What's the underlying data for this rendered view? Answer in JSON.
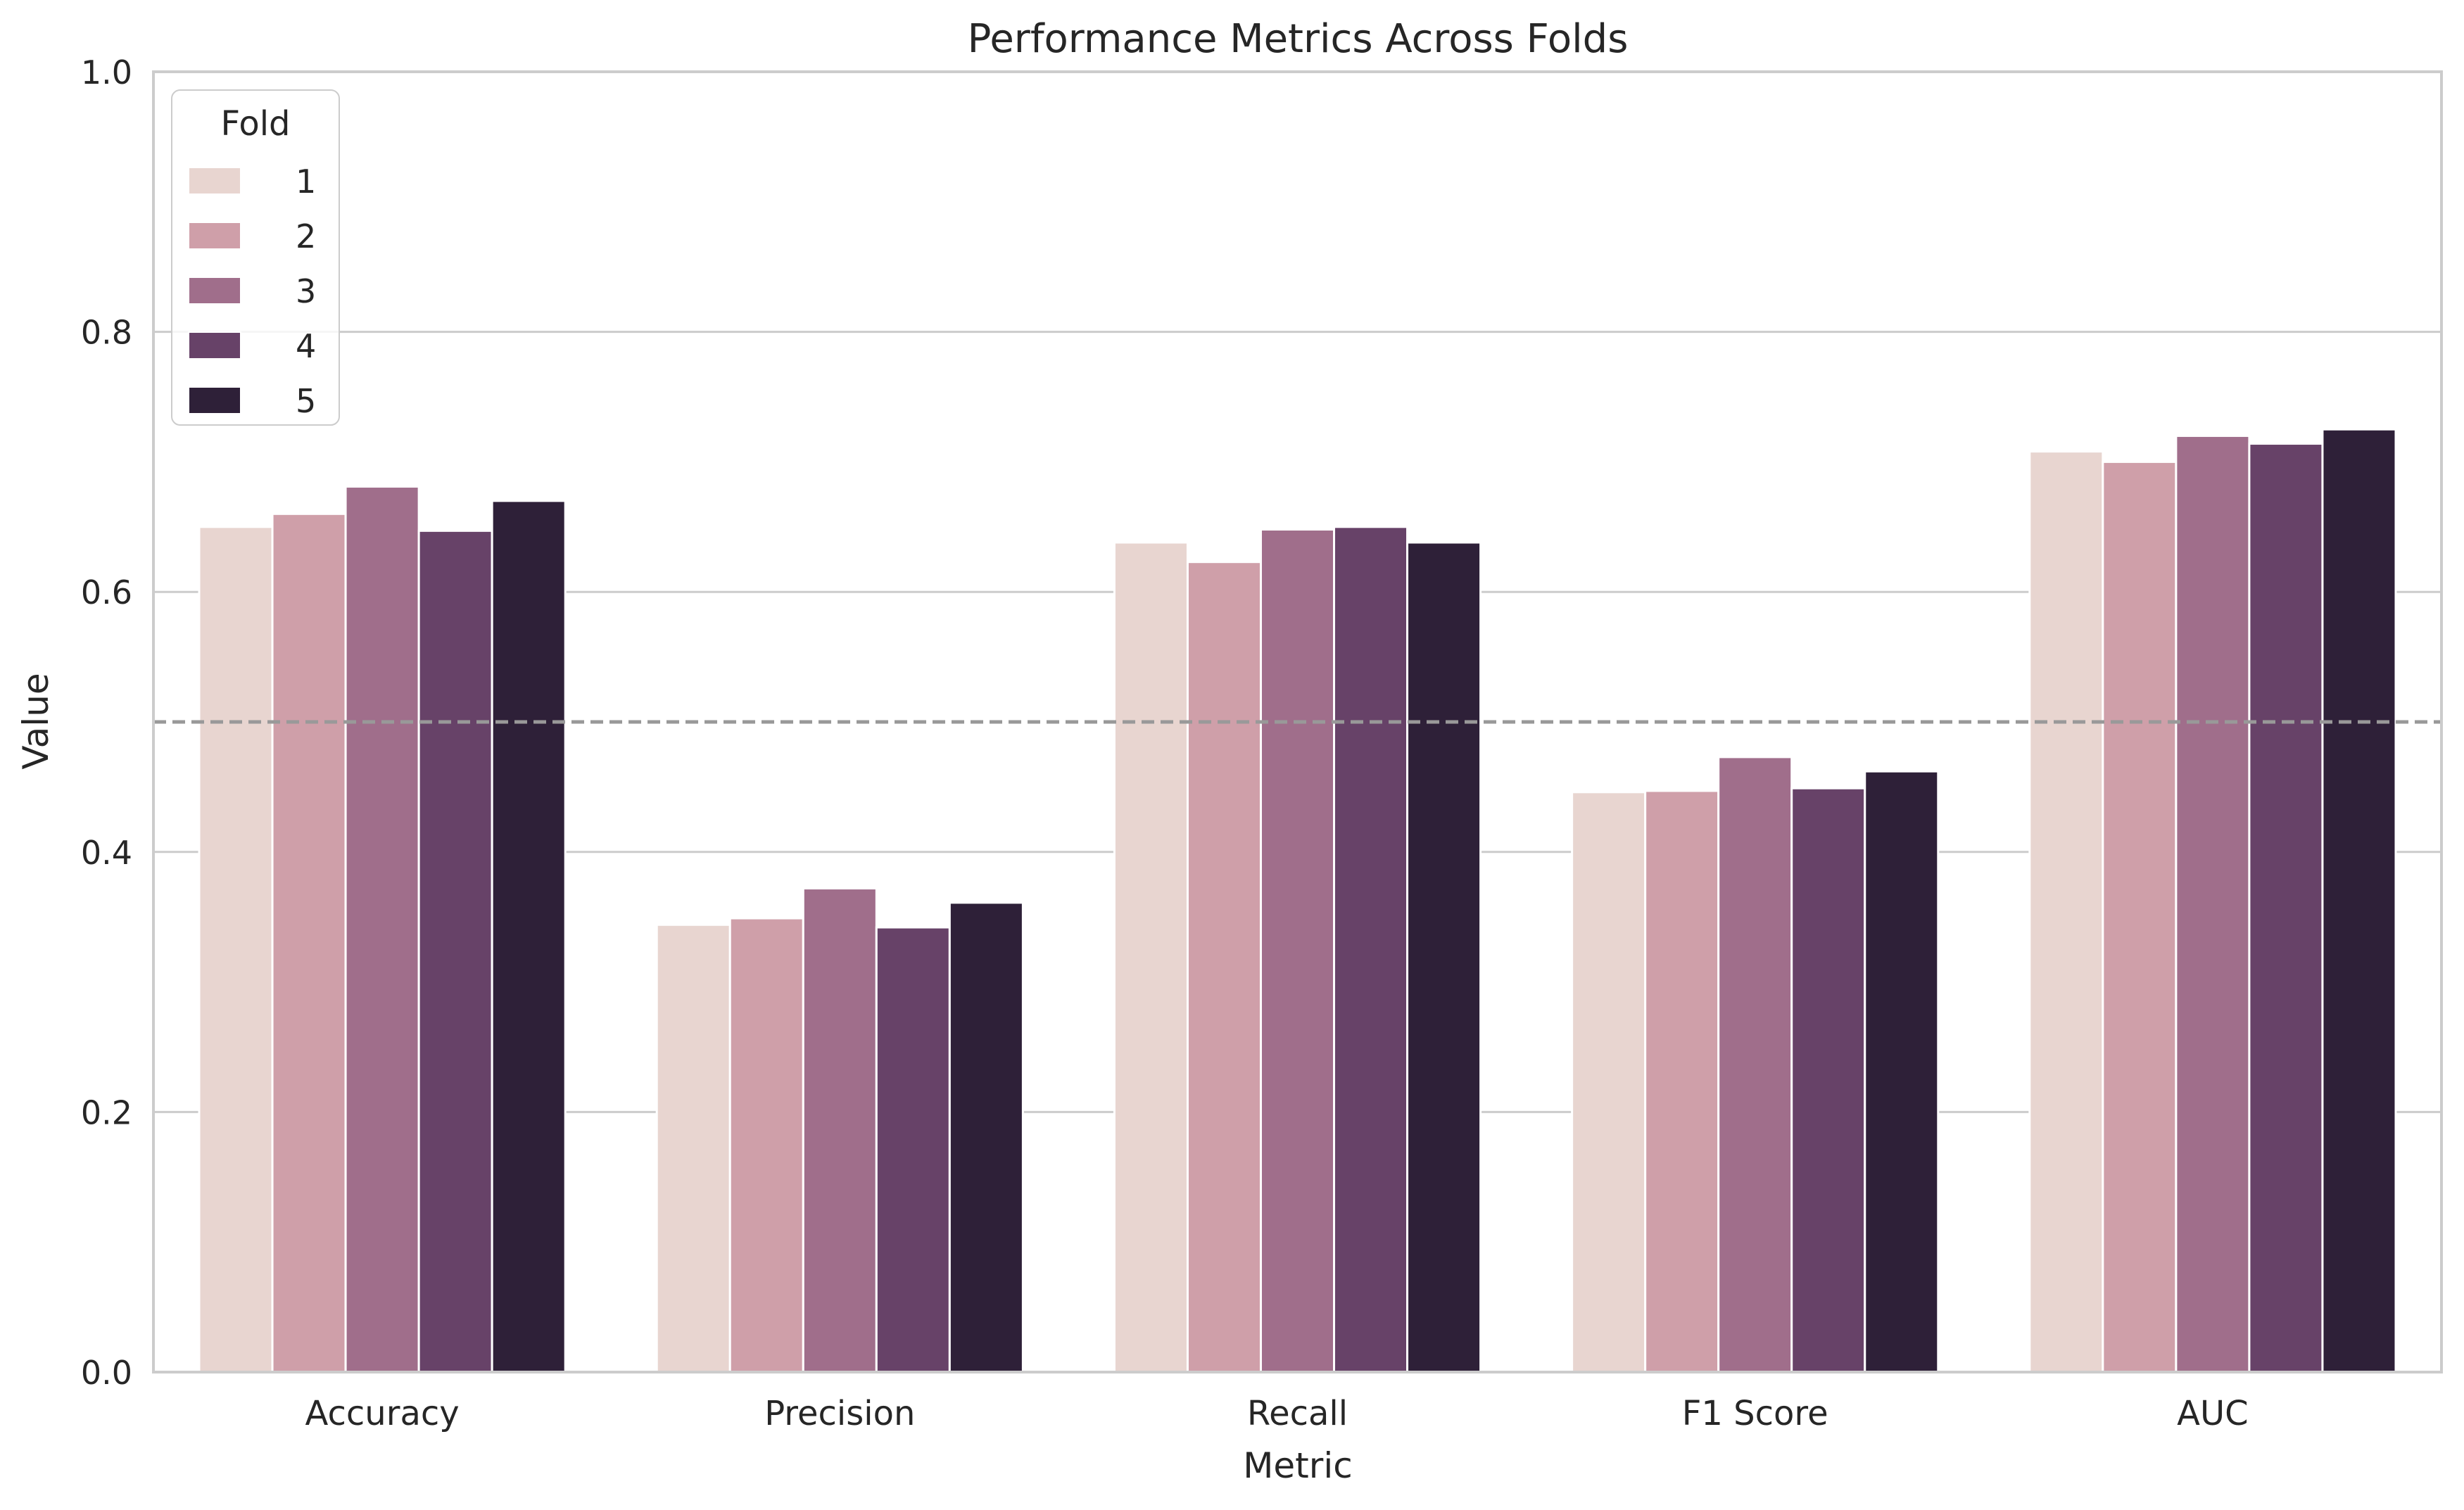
{
  "chart_data": {
    "type": "bar",
    "title": "Performance Metrics Across Folds",
    "xlabel": "Metric",
    "ylabel": "Value",
    "categories": [
      "Accuracy",
      "Precision",
      "Recall",
      "F1 Score",
      "AUC"
    ],
    "ylim": [
      0,
      1.0
    ],
    "yticks": [
      "0.0",
      "0.2",
      "0.4",
      "0.6",
      "0.8",
      "1.0"
    ],
    "grid": "horizontal",
    "reference_line": {
      "y": 0.5,
      "style": "dashed",
      "color": "#999999"
    },
    "legend": {
      "title": "Fold",
      "position": "top-left"
    },
    "series": [
      {
        "name": "1",
        "color": "#e8d5d0",
        "values": [
          0.65,
          0.344,
          0.638,
          0.446,
          0.708
        ]
      },
      {
        "name": "2",
        "color": "#cf9fa9",
        "values": [
          0.66,
          0.349,
          0.623,
          0.447,
          0.7
        ]
      },
      {
        "name": "3",
        "color": "#a06e8b",
        "values": [
          0.681,
          0.372,
          0.648,
          0.473,
          0.72
        ]
      },
      {
        "name": "4",
        "color": "#674268",
        "values": [
          0.647,
          0.342,
          0.65,
          0.449,
          0.714
        ]
      },
      {
        "name": "5",
        "color": "#2e2038",
        "values": [
          0.67,
          0.361,
          0.638,
          0.462,
          0.725
        ]
      }
    ]
  }
}
